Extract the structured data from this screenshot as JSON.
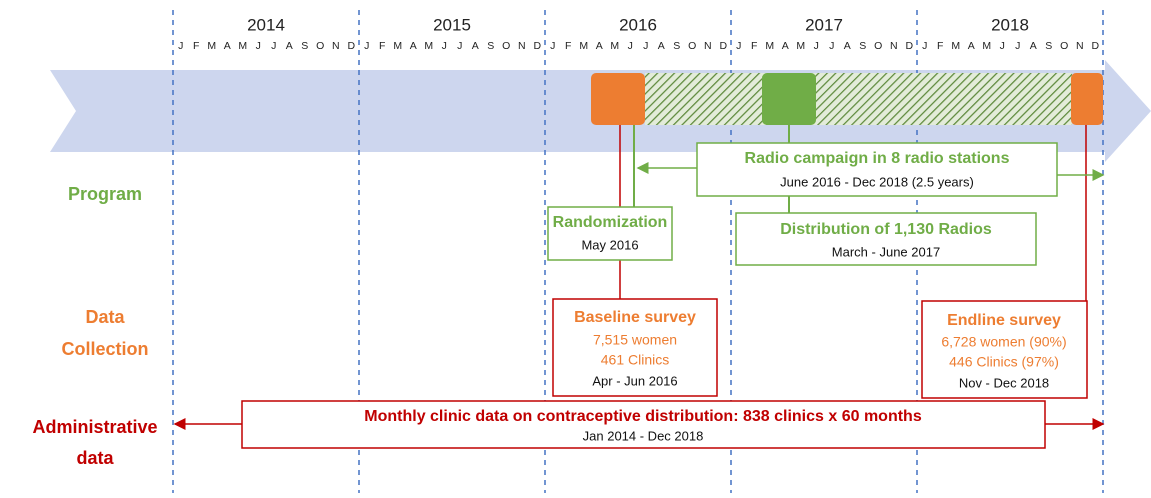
{
  "timeline": {
    "years": [
      "2014",
      "2015",
      "2016",
      "2017",
      "2018"
    ],
    "months": [
      "J",
      "F",
      "M",
      "A",
      "M",
      "J",
      "J",
      "A",
      "S",
      "O",
      "N",
      "D"
    ]
  },
  "rows": {
    "program": "Program",
    "data_collection": [
      "Data",
      "Collection"
    ],
    "administrative": [
      "Administrative",
      "data"
    ]
  },
  "boxes": {
    "radio_campaign": {
      "title": "Radio campaign in 8 radio stations",
      "dates": "June 2016 - Dec 2018 (2.5 years)"
    },
    "randomization": {
      "title": "Randomization",
      "dates": "May 2016"
    },
    "distribution": {
      "title": "Distribution of 1,130 Radios",
      "dates": "March - June 2017"
    },
    "baseline": {
      "title": "Baseline survey",
      "lines": [
        "7,515 women",
        "461 Clinics"
      ],
      "dates": "Apr - Jun 2016"
    },
    "endline": {
      "title": "Endline survey",
      "lines": [
        "6,728 women (90%)",
        "446 Clinics (97%)"
      ],
      "dates": "Nov - Dec 2018"
    },
    "admin": {
      "title": "Monthly clinic data on contraceptive distribution: 838 clinics x 60 months",
      "dates": "Jan 2014 - Dec 2018"
    }
  }
}
